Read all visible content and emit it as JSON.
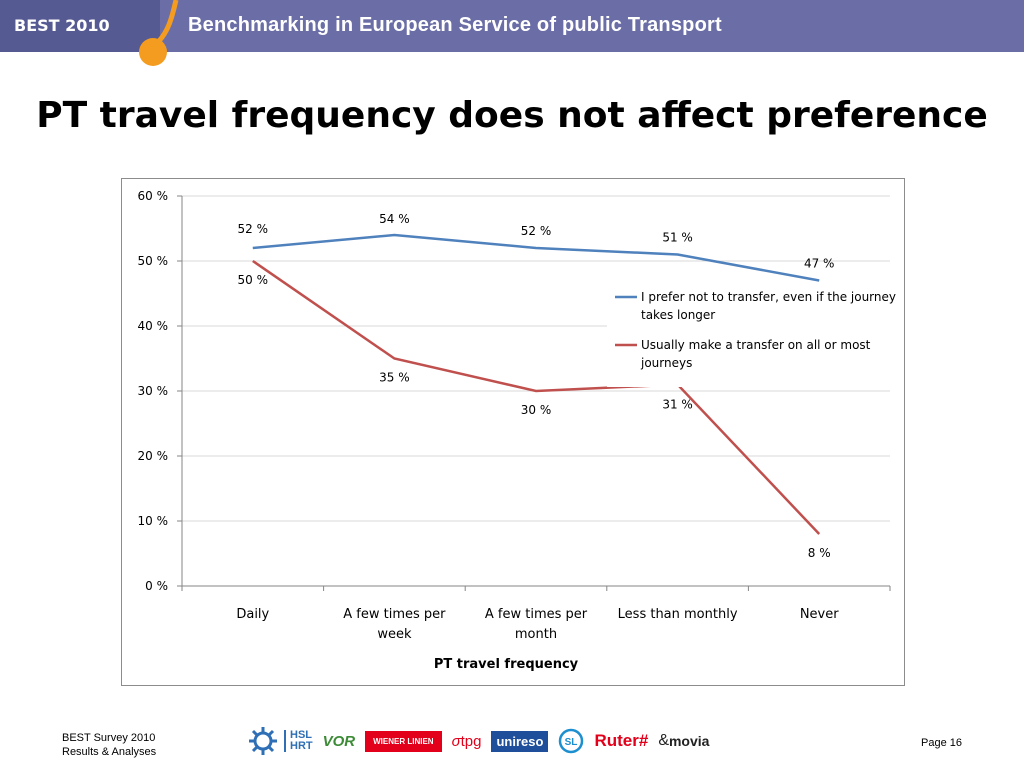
{
  "header": {
    "badge": "BEST 2010",
    "title": "Benchmarking in European Service of public Transport"
  },
  "slide": {
    "title": "PT travel frequency does not affect preference"
  },
  "chart_data": {
    "type": "line",
    "categories": [
      [
        "Daily"
      ],
      [
        "A few times per",
        "week"
      ],
      [
        "A few times per",
        "month"
      ],
      [
        "Less than monthly"
      ],
      [
        "Never"
      ]
    ],
    "xlabel": "PT travel frequency",
    "ylabel": "",
    "ylim": [
      0,
      60
    ],
    "yticks": [
      "0 %",
      "10 %",
      "20 %",
      "30 %",
      "40 %",
      "50 %",
      "60 %"
    ],
    "grid": true,
    "legend_position": "right",
    "series": [
      {
        "name": "I prefer not to transfer, even if the journey takes longer",
        "legend_lines": [
          "I prefer not to transfer, even if the journey",
          "takes longer"
        ],
        "color": "#4f81bd",
        "values": [
          52,
          54,
          52,
          51,
          47
        ],
        "labels": [
          "52 %",
          "54 %",
          "52 %",
          "51 %",
          "47 %"
        ]
      },
      {
        "name": "Usually make a transfer on all or most journeys",
        "legend_lines": [
          "Usually make a transfer on all or most",
          "journeys"
        ],
        "color": "#c0504d",
        "values": [
          50,
          35,
          30,
          31,
          8
        ],
        "labels": [
          "50 %",
          "35 %",
          "30 %",
          "31 %",
          "8 %"
        ]
      }
    ]
  },
  "footer": {
    "line1": "BEST Survey 2010",
    "line2": "Results & Analyses",
    "page": "Page 16"
  },
  "logos": {
    "hsl": "HSL",
    "hrt": "HRT",
    "vor": "VOR",
    "wiener": "WIENER LINIEN",
    "tpg": "tpg",
    "unireso": "unireso",
    "sl": "SL",
    "ruter": "Ruter#",
    "movia": "movia"
  }
}
